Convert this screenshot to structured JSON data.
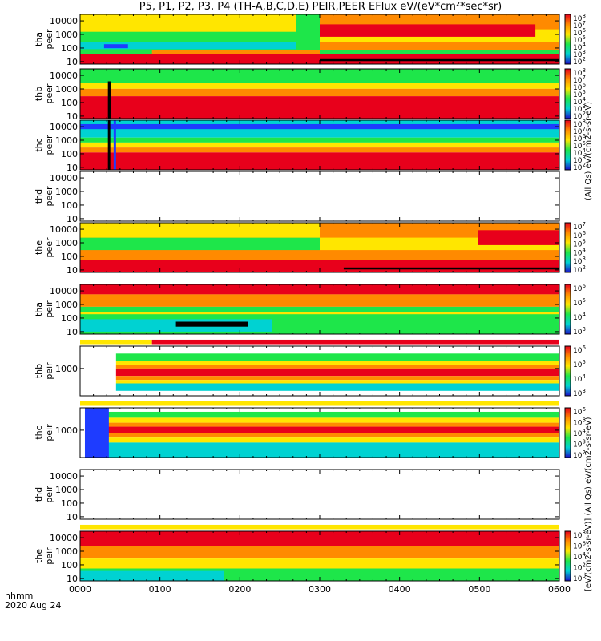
{
  "title": "P5, P1, P2, P3, P4 (TH-A,B,C,D,E) PEIR,PEER EFlux eV/(eV*cm²*sec*sr)",
  "colors": {
    "red": "#e8001b",
    "orange": "#ff8a00",
    "yellow": "#ffe600",
    "green": "#1ee64a",
    "cyan": "#00d2d2",
    "blue": "#1e3cff",
    "navy": "#1c0cc8",
    "black": "#000000"
  },
  "footer": {
    "line1": "hhmm",
    "line2": "2020 Aug 24"
  },
  "side_units": {
    "upper": "(All Qs) eV/(cm2-s-sr-eV)",
    "lower": "[eV/(cm2-s-sr-eV)]  (All Qs) eV/(cm2-s-sr-eV)"
  },
  "chart_data": {
    "type": "heatmap",
    "x_label": "hhmm",
    "x_ticks": [
      "0000",
      "0100",
      "0200",
      "0300",
      "0400",
      "0500",
      "0600"
    ],
    "xlim_hhmm": [
      "0000",
      "0600"
    ],
    "panels": [
      {
        "ylabel_line1": "tha",
        "ylabel_line2": "peer",
        "y_scale": "log",
        "y_ticks": [
          "10",
          "100",
          "1000",
          "10000"
        ],
        "colorbar_ticks": [
          "10^2",
          "10^3",
          "10^4",
          "10^5",
          "10^6",
          "10^7",
          "10^8"
        ],
        "has_data": true
      },
      {
        "ylabel_line1": "thb",
        "ylabel_line2": "peer",
        "y_scale": "log",
        "y_ticks": [
          "10",
          "100",
          "1000",
          "10000"
        ],
        "colorbar_ticks": [
          "10^2",
          "10^3",
          "10^4",
          "10^5",
          "10^6",
          "10^7",
          "10^8"
        ],
        "has_data": true
      },
      {
        "ylabel_line1": "thc",
        "ylabel_line2": "peer",
        "y_scale": "log",
        "y_ticks": [
          "10",
          "100",
          "1000",
          "10000"
        ],
        "colorbar_ticks": [
          "10^2",
          "10^3",
          "10^4",
          "10^5",
          "10^6",
          "10^7",
          "10^8"
        ],
        "has_data": true
      },
      {
        "ylabel_line1": "thd",
        "ylabel_line2": "peer",
        "y_scale": "log",
        "y_ticks": [
          "10",
          "100",
          "1000",
          "10000"
        ],
        "colorbar_ticks": [],
        "has_data": false
      },
      {
        "ylabel_line1": "the",
        "ylabel_line2": "peer",
        "y_scale": "log",
        "y_ticks": [
          "10",
          "100",
          "1000",
          "10000"
        ],
        "colorbar_ticks": [
          "10^2",
          "10^3",
          "10^4",
          "10^5",
          "10^6",
          "10^7"
        ],
        "has_data": true
      },
      {
        "ylabel_line1": "tha",
        "ylabel_line2": "peir",
        "y_scale": "log",
        "y_ticks": [
          "10",
          "100",
          "1000",
          "10000"
        ],
        "colorbar_ticks": [
          "10^3",
          "10^4",
          "10^5",
          "10^6"
        ],
        "has_data": true
      },
      {
        "ylabel_line1": "thb",
        "ylabel_line2": "peir",
        "y_scale": "log",
        "y_ticks": [
          "1000"
        ],
        "colorbar_ticks": [
          "10^3",
          "10^4",
          "10^5",
          "10^6"
        ],
        "has_data": true
      },
      {
        "ylabel_line1": "thc",
        "ylabel_line2": "peir",
        "y_scale": "log",
        "y_ticks": [
          "1000"
        ],
        "colorbar_ticks": [
          "10^2",
          "10^3",
          "10^4",
          "10^5",
          "10^6"
        ],
        "has_data": true
      },
      {
        "ylabel_line1": "thd",
        "ylabel_line2": "peir",
        "y_scale": "log",
        "y_ticks": [
          "10",
          "100",
          "1000",
          "10000"
        ],
        "colorbar_ticks": [],
        "has_data": false
      },
      {
        "ylabel_line1": "the",
        "ylabel_line2": "peir",
        "y_scale": "log",
        "y_ticks": [
          "10",
          "100",
          "1000",
          "10000"
        ],
        "colorbar_ticks": [
          "10^0",
          "10^2",
          "10^4",
          "10^6",
          "10^8"
        ],
        "has_data": true
      }
    ]
  }
}
